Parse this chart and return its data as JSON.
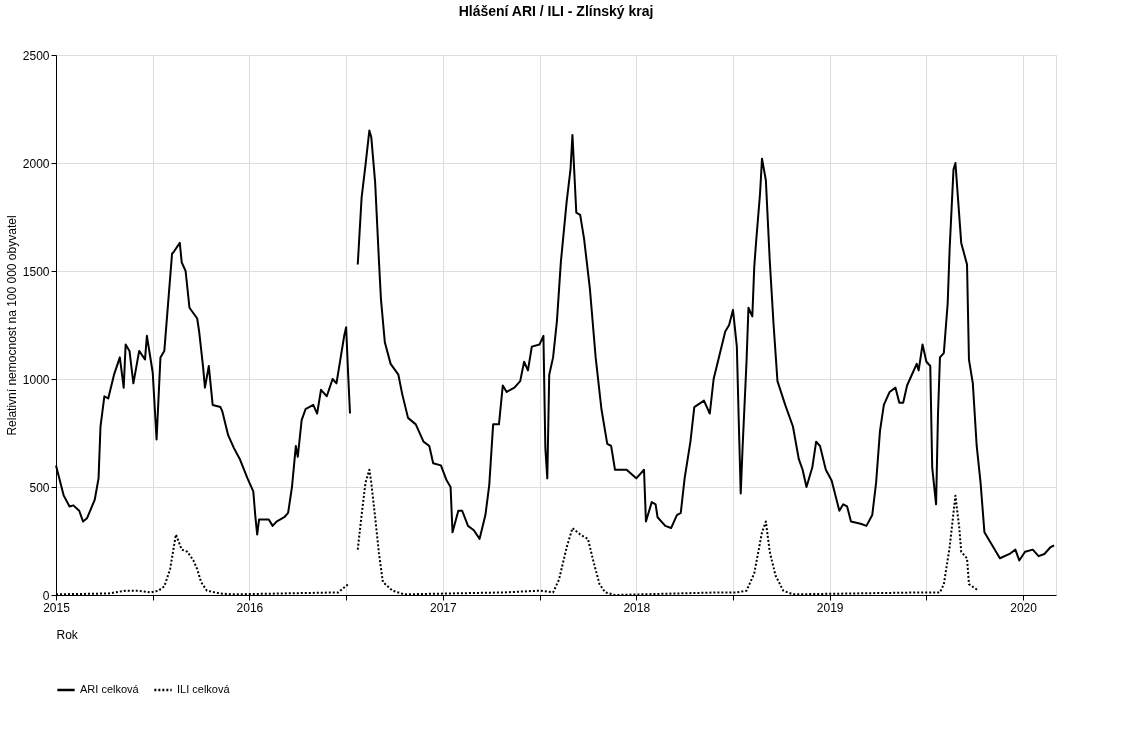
{
  "chart_data": {
    "type": "line",
    "title": "Hlášení ARI / ILI  -  Zlínský kraj",
    "xlabel": "Rok",
    "ylabel": "Relativní nemocnost na 100 000 obyvatel",
    "xlim": [
      2015,
      2020.17
    ],
    "xticks": [
      2015,
      {
        "value": 2015.5,
        "label": null
      },
      2016,
      {
        "value": 2016.5,
        "label": null
      },
      2017,
      {
        "value": 2017.5,
        "label": null
      },
      2018,
      {
        "value": 2018.5,
        "label": null
      },
      2019,
      {
        "value": 2019.5,
        "label": null
      },
      2020
    ],
    "ylim": [
      0,
      2500
    ],
    "yticks": [
      0,
      500,
      1000,
      1500,
      2000,
      2500
    ],
    "grid": true,
    "legend": "bottom",
    "marker": "none",
    "series": [
      {
        "name": "ARI celková",
        "color": "#000000",
        "line_style": "solid",
        "x": [
          2015.0,
          2015.04,
          2015.07,
          2015.09,
          2015.12,
          2015.14,
          2015.16,
          2015.2,
          2015.22,
          2015.23,
          2015.25,
          2015.27,
          2015.3,
          2015.33,
          2015.35,
          2015.36,
          2015.38,
          2015.4,
          2015.43,
          2015.46,
          2015.47,
          2015.5,
          2015.52,
          2015.54,
          2015.56,
          2015.6,
          2015.61,
          2015.64,
          2015.65,
          2015.67,
          2015.69,
          2015.73,
          2015.74,
          2015.76,
          2015.77,
          2015.79,
          2015.81,
          2015.85,
          2015.86,
          2015.89,
          2015.92,
          2015.95,
          2015.99,
          2016.02,
          2016.03,
          2016.04,
          2016.05,
          2016.1,
          2016.12,
          2016.14,
          2016.18,
          2016.2,
          2016.22,
          2016.24,
          2016.25,
          2016.27,
          2016.29,
          2016.33,
          2016.35,
          2016.37,
          2016.4,
          2016.43,
          2016.45,
          2016.47,
          2016.49,
          2016.5,
          2016.51,
          2016.52,
          2016.53,
          2016.56,
          2016.58,
          2016.6,
          2016.62,
          2016.63,
          2016.65,
          2016.67,
          2016.68,
          2016.7,
          2016.73,
          2016.77,
          2016.79,
          2016.82,
          2016.86,
          2016.9,
          2016.93,
          2016.95,
          2016.99,
          2017.02,
          2017.04,
          2017.05,
          2017.08,
          2017.1,
          2017.13,
          2017.16,
          2017.19,
          2017.22,
          2017.24,
          2017.26,
          2017.29,
          2017.31,
          2017.33,
          2017.37,
          2017.4,
          2017.42,
          2017.44,
          2017.46,
          2017.5,
          2017.52,
          2017.53,
          2017.54,
          2017.55,
          2017.57,
          2017.59,
          2017.61,
          2017.64,
          2017.66,
          2017.67,
          2017.69,
          2017.71,
          2017.73,
          2017.76,
          2017.79,
          2017.82,
          2017.85,
          2017.87,
          2017.89,
          2017.95,
          2018.0,
          2018.04,
          2018.05,
          2018.08,
          2018.1,
          2018.11,
          2018.15,
          2018.18,
          2018.21,
          2018.23,
          2018.25,
          2018.28,
          2018.3,
          2018.35,
          2018.38,
          2018.4,
          2018.43,
          2018.46,
          2018.48,
          2018.5,
          2018.52,
          2018.53,
          2018.54,
          2018.55,
          2018.57,
          2018.58,
          2018.6,
          2018.61,
          2018.62,
          2018.64,
          2018.65,
          2018.67,
          2018.69,
          2018.71,
          2018.73,
          2018.77,
          2018.81,
          2018.84,
          2018.86,
          2018.88,
          2018.91,
          2018.93,
          2018.95,
          2018.98,
          2019.01,
          2019.05,
          2019.07,
          2019.09,
          2019.11,
          2019.16,
          2019.19,
          2019.22,
          2019.24,
          2019.26,
          2019.28,
          2019.31,
          2019.34,
          2019.36,
          2019.38,
          2019.4,
          2019.43,
          2019.45,
          2019.46,
          2019.48,
          2019.5,
          2019.52,
          2019.53,
          2019.55,
          2019.56,
          2019.57,
          2019.59,
          2019.61,
          2019.62,
          2019.64,
          2019.65,
          2019.68,
          2019.71,
          2019.72,
          2019.74,
          2019.76,
          2019.78,
          2019.8,
          2019.84,
          2019.88,
          2019.93,
          2019.96,
          2019.98,
          2020.01,
          2020.05,
          2020.08,
          2020.11,
          2020.14,
          2020.16
        ],
        "values": [
          600,
          460,
          410,
          415,
          390,
          340,
          355,
          440,
          540,
          780,
          920,
          910,
          1020,
          1100,
          960,
          1160,
          1130,
          980,
          1130,
          1090,
          1200,
          1030,
          720,
          1100,
          1130,
          1580,
          1590,
          1630,
          1540,
          1500,
          1330,
          1280,
          1220,
          1060,
          960,
          1060,
          880,
          870,
          850,
          740,
          680,
          630,
          540,
          480,
          370,
          280,
          350,
          350,
          320,
          340,
          360,
          380,
          500,
          690,
          640,
          810,
          860,
          880,
          840,
          950,
          920,
          1000,
          980,
          1090,
          1200,
          1240,
          1030,
          840,
          null,
          1530,
          1840,
          1990,
          2150,
          2120,
          1910,
          1540,
          1370,
          1170,
          1070,
          1020,
          930,
          820,
          790,
          710,
          690,
          610,
          600,
          530,
          500,
          290,
          390,
          390,
          320,
          300,
          260,
          370,
          510,
          790,
          790,
          970,
          940,
          960,
          990,
          1080,
          1040,
          1150,
          1160,
          1200,
          680,
          540,
          1020,
          1100,
          1270,
          1540,
          1820,
          1970,
          2130,
          1770,
          1760,
          1650,
          1420,
          1100,
          860,
          700,
          690,
          580,
          580,
          540,
          580,
          340,
          430,
          420,
          360,
          320,
          310,
          370,
          380,
          540,
          710,
          870,
          900,
          840,
          1000,
          1110,
          1220,
          1250,
          1320,
          1150,
          800,
          470,
          690,
          1080,
          1330,
          1290,
          1520,
          1640,
          1860,
          2020,
          1920,
          1550,
          1250,
          990,
          880,
          780,
          630,
          580,
          500,
          590,
          710,
          690,
          580,
          530,
          390,
          420,
          410,
          340,
          330,
          320,
          370,
          520,
          760,
          880,
          940,
          960,
          890,
          890,
          970,
          1030,
          1070,
          1040,
          1160,
          1080,
          1060,
          590,
          420,
          840,
          1100,
          1120,
          1350,
          1600,
          1970,
          2000,
          1630,
          1530,
          1090,
          980,
          690,
          520,
          290,
          230,
          170,
          190,
          210,
          160,
          200,
          210,
          180,
          190,
          220,
          230
        ]
      },
      {
        "name": "ILI celková",
        "color": "#000000",
        "line_style": "dotted",
        "x": [
          2015.0,
          2015.27,
          2015.36,
          2015.42,
          2015.49,
          2015.53,
          2015.56,
          2015.59,
          2015.62,
          2015.65,
          2015.68,
          2015.71,
          2015.73,
          2015.75,
          2015.78,
          2015.85,
          2015.92,
          2016.46,
          2016.51,
          2016.53,
          2016.56,
          2016.58,
          2016.6,
          2016.62,
          2016.63,
          2016.65,
          2016.67,
          2016.69,
          2016.74,
          2016.8,
          2017.32,
          2017.5,
          2017.57,
          2017.6,
          2017.64,
          2017.67,
          2017.71,
          2017.75,
          2017.78,
          2017.81,
          2017.84,
          2017.89,
          2018.43,
          2018.52,
          2018.57,
          2018.61,
          2018.65,
          2018.67,
          2018.69,
          2018.72,
          2018.76,
          2018.81,
          2019.48,
          2019.57,
          2019.59,
          2019.62,
          2019.65,
          2019.67,
          2019.68,
          2019.71,
          2019.72,
          2019.77
        ],
        "values": [
          3,
          7,
          20,
          20,
          12,
          20,
          40,
          120,
          280,
          210,
          200,
          160,
          120,
          60,
          20,
          7,
          3,
          12,
          50,
          null,
          210,
          370,
          520,
          580,
          520,
          360,
          190,
          60,
          20,
          3,
          12,
          20,
          12,
          70,
          220,
          310,
          280,
          260,
          150,
          50,
          12,
          0,
          12,
          12,
          20,
          100,
          290,
          340,
          200,
          90,
          20,
          3,
          12,
          12,
          50,
          220,
          460,
          310,
          200,
          170,
          50,
          20
        ]
      }
    ]
  }
}
